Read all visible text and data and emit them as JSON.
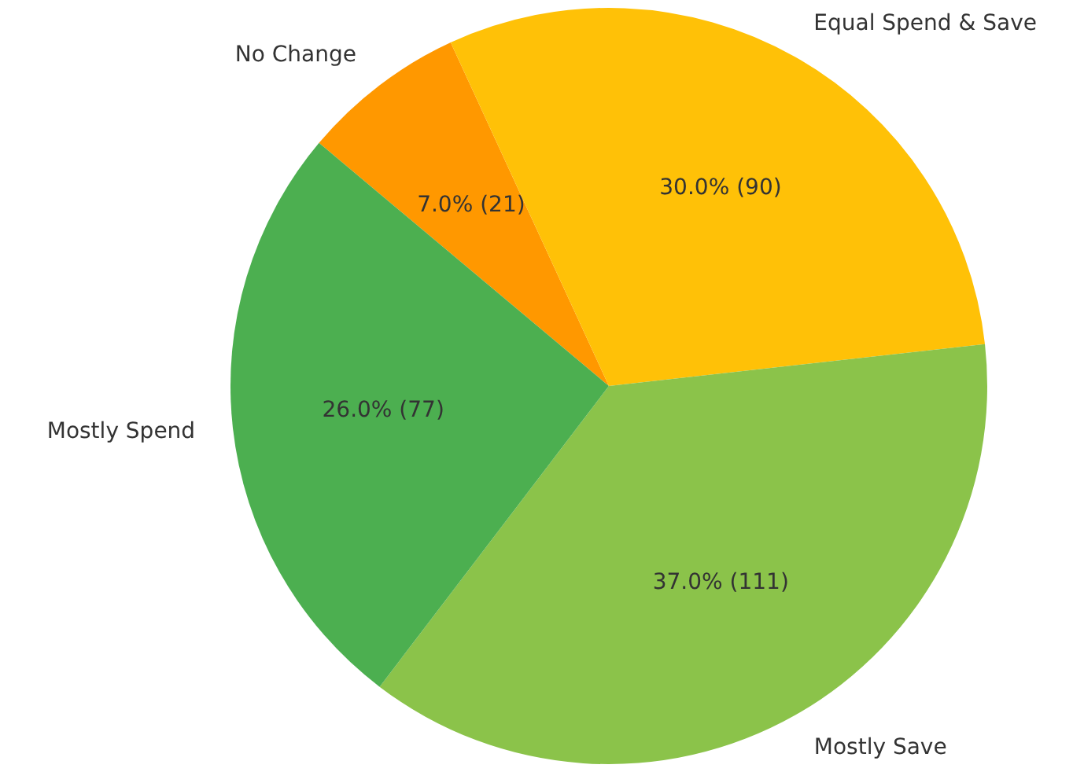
{
  "chart_data": {
    "type": "pie",
    "categories": [
      "No Change",
      "Equal Spend & Save",
      "Mostly Save",
      "Mostly Spend"
    ],
    "values": [
      21,
      90,
      111,
      77
    ],
    "value_labels": [
      "7.0% (21)",
      "30.0% (90)",
      "37.0% (111)",
      "26.0% (77)"
    ],
    "colors": [
      "#ff9800",
      "#ffc107",
      "#8bc34a",
      "#4caf50"
    ],
    "legend": false
  }
}
